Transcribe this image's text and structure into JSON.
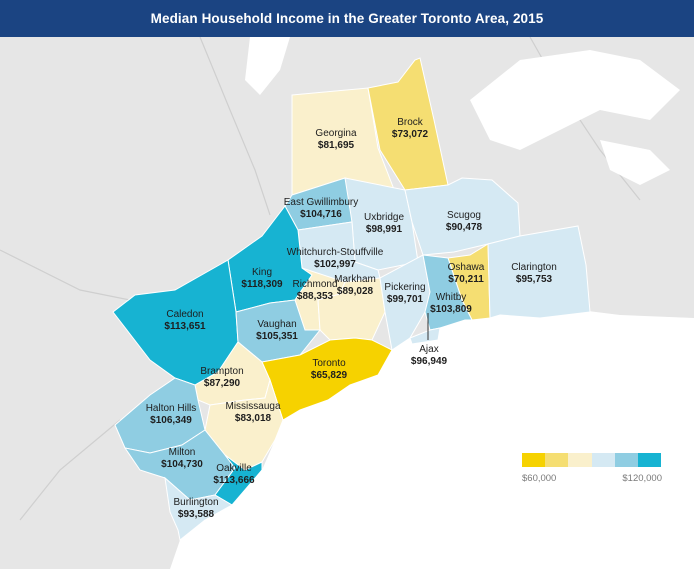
{
  "title": "Median Household Income in the Greater Toronto Area, 2015",
  "legend": {
    "min_label": "$60,000",
    "max_label": "$120,000",
    "colors": [
      "#f6d200",
      "#f5de72",
      "#faf0cc",
      "#d5e9f3",
      "#8fcde2",
      "#17b3d2"
    ]
  },
  "colors": {
    "land": "#e6e6e6",
    "water": "#ffffff",
    "title_bar": "#1b4482",
    "road": "#cfcfcf"
  },
  "municipalities": [
    {
      "name": "Georgina",
      "income": "$81,695",
      "color": "#faf0cc"
    },
    {
      "name": "Brock",
      "income": "$73,072",
      "color": "#f5de72"
    },
    {
      "name": "East Gwillimbury",
      "income": "$104,716",
      "color": "#8fcde2"
    },
    {
      "name": "Uxbridge",
      "income": "$98,991",
      "color": "#d5e9f3"
    },
    {
      "name": "Scugog",
      "income": "$90,478",
      "color": "#d5e9f3"
    },
    {
      "name": "Whitchurch-Stouffville",
      "income": "$102,997",
      "color": "#d5e9f3"
    },
    {
      "name": "King",
      "income": "$118,309",
      "color": "#17b3d2"
    },
    {
      "name": "Richmond",
      "income": "$88,353",
      "color": "#faf0cc"
    },
    {
      "name": "Markham",
      "income": "$89,028",
      "color": "#faf0cc"
    },
    {
      "name": "Oshawa",
      "income": "$70,211",
      "color": "#f5de72"
    },
    {
      "name": "Clarington",
      "income": "$95,753",
      "color": "#d5e9f3"
    },
    {
      "name": "Pickering",
      "income": "$99,701",
      "color": "#d5e9f3"
    },
    {
      "name": "Whitby",
      "income": "$103,809",
      "color": "#8fcde2"
    },
    {
      "name": "Caledon",
      "income": "$113,651",
      "color": "#17b3d2"
    },
    {
      "name": "Vaughan",
      "income": "$105,351",
      "color": "#8fcde2"
    },
    {
      "name": "Ajax",
      "income": "$96,949",
      "color": "#d5e9f3"
    },
    {
      "name": "Toronto",
      "income": "$65,829",
      "color": "#f6d200"
    },
    {
      "name": "Brampton",
      "income": "$87,290",
      "color": "#faf0cc"
    },
    {
      "name": "Halton Hills",
      "income": "$106,349",
      "color": "#8fcde2"
    },
    {
      "name": "Mississauga",
      "income": "$83,018",
      "color": "#faf0cc"
    },
    {
      "name": "Milton",
      "income": "$104,730",
      "color": "#8fcde2"
    },
    {
      "name": "Oakville",
      "income": "$113,666",
      "color": "#17b3d2"
    },
    {
      "name": "Burlington",
      "income": "$93,588",
      "color": "#d5e9f3"
    }
  ]
}
